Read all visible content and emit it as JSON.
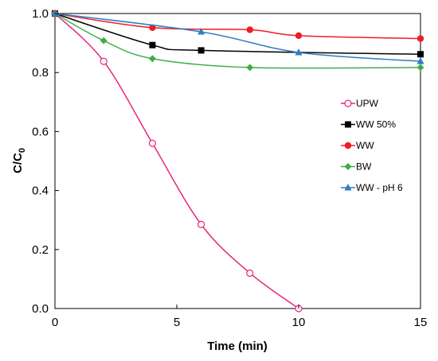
{
  "chart_data": {
    "type": "scatter",
    "xlabel": "Time (min)",
    "ylabel_main": "C/C",
    "ylabel_sub": "0",
    "xlim": [
      0,
      15
    ],
    "ylim": [
      0,
      1.0
    ],
    "x_ticks": [
      0,
      5,
      10,
      15
    ],
    "y_ticks": [
      "0.0",
      "0.2",
      "0.4",
      "0.6",
      "0.8",
      "1.0"
    ],
    "grid": false,
    "legend_position": "right",
    "series": [
      {
        "name": "UPW",
        "color": "#e8257c",
        "marker": "open-circle",
        "x": [
          0,
          2,
          4,
          6,
          8,
          10
        ],
        "y": [
          1.0,
          0.838,
          0.56,
          0.285,
          0.12,
          0.0
        ]
      },
      {
        "name": "WW 50%",
        "color": "#000000",
        "marker": "square",
        "x": [
          0,
          4,
          6,
          15
        ],
        "y": [
          1.0,
          0.893,
          0.875,
          0.862
        ]
      },
      {
        "name": "WW",
        "color": "#ee1c25",
        "marker": "circle",
        "x": [
          0,
          4,
          8,
          10,
          15
        ],
        "y": [
          1.0,
          0.952,
          0.945,
          0.925,
          0.915
        ]
      },
      {
        "name": "BW",
        "color": "#3fae49",
        "marker": "diamond",
        "x": [
          0,
          2,
          4,
          8,
          15
        ],
        "y": [
          1.0,
          0.908,
          0.847,
          0.817,
          0.817
        ]
      },
      {
        "name": "WW - pH 6",
        "color": "#2e7dc3",
        "marker": "triangle",
        "x": [
          0,
          6,
          10,
          15
        ],
        "y": [
          1.0,
          0.938,
          0.868,
          0.838
        ]
      }
    ]
  }
}
